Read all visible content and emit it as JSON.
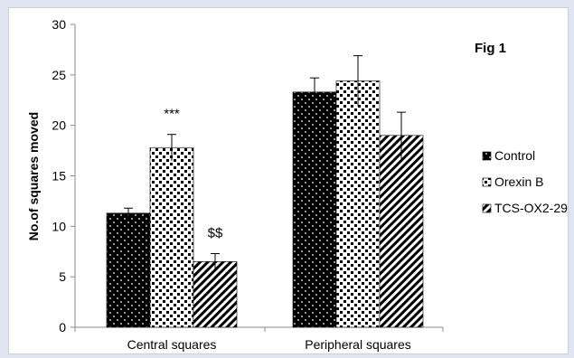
{
  "figure_label": "Fig 1",
  "chart_data": {
    "type": "bar",
    "title": "",
    "xlabel": "",
    "ylabel": "No.of squares moved",
    "ylim": [
      0,
      30
    ],
    "yticks": [
      0,
      5,
      10,
      15,
      20,
      25,
      30
    ],
    "categories": [
      "Central squares",
      "Peripheral squares"
    ],
    "series": [
      {
        "name": "Control",
        "values": [
          11.3,
          23.3
        ],
        "errors": [
          0.5,
          1.4
        ],
        "pattern": "dots-on-black",
        "fill": "#000000"
      },
      {
        "name": "Orexin B",
        "values": [
          17.8,
          24.4
        ],
        "errors": [
          1.3,
          2.5
        ],
        "pattern": "checker",
        "fill": "#ffffff"
      },
      {
        "name": "TCS-OX2-29",
        "values": [
          6.5,
          19.0
        ],
        "errors": [
          0.8,
          2.3
        ],
        "pattern": "diagonal-stripes",
        "fill": "#ffffff"
      }
    ],
    "annotations": [
      {
        "text": "***",
        "category": 0,
        "series": 1
      },
      {
        "text": "$$",
        "category": 0,
        "series": 2
      }
    ],
    "legend_position": "right",
    "grid": false
  }
}
